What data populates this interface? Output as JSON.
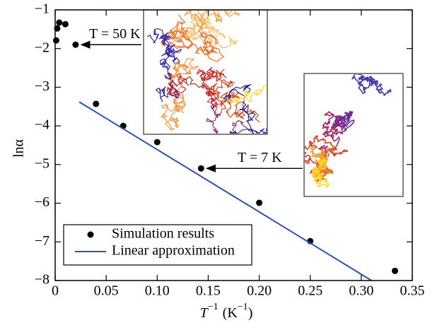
{
  "chart_data": {
    "type": "scatter",
    "xlabel": {
      "base": "T",
      "exp": "−1",
      "unit": "(K",
      "unit_exp": "−1",
      "close": ")"
    },
    "ylabel": "lnα",
    "xlim": [
      0,
      0.35
    ],
    "ylim": [
      -8,
      -1
    ],
    "xticks": [
      0,
      0.05,
      {
        "value": 0.1,
        "label": "0.10"
      },
      0.15,
      {
        "value": 0.2,
        "label": "0.20"
      },
      0.25,
      {
        "value": 0.3,
        "label": "0.30"
      },
      0.35
    ],
    "yticks": [
      {
        "value": -1,
        "label": "−1"
      },
      {
        "value": -2,
        "label": "−2"
      },
      {
        "value": -3,
        "label": "−3"
      },
      {
        "value": -4,
        "label": "−4"
      },
      {
        "value": -5,
        "label": "−5"
      },
      {
        "value": -6,
        "label": "−6"
      },
      {
        "value": -7,
        "label": "−7"
      },
      {
        "value": -8,
        "label": "−8"
      }
    ],
    "legend": "lower left",
    "series": [
      {
        "name": "Simulation results",
        "color": "#000000",
        "type": "scatter",
        "x": [
          0.001,
          0.002,
          0.004,
          0.01,
          0.02,
          0.04,
          0.0667,
          0.1,
          0.143,
          0.2,
          0.25,
          0.333
        ],
        "values": [
          -1.79,
          -1.48,
          -1.33,
          -1.37,
          -1.9,
          -3.43,
          -4.0,
          -4.42,
          -5.1,
          -5.99,
          -6.98,
          -7.75
        ]
      },
      {
        "name": "Linear approximation",
        "color": "#2a52b0",
        "type": "line",
        "x": [
          0.0236,
          0.31
        ],
        "values": [
          -3.38,
          -8
        ]
      }
    ],
    "annotations": [
      "T = 50 K",
      "T = 7 K"
    ]
  }
}
